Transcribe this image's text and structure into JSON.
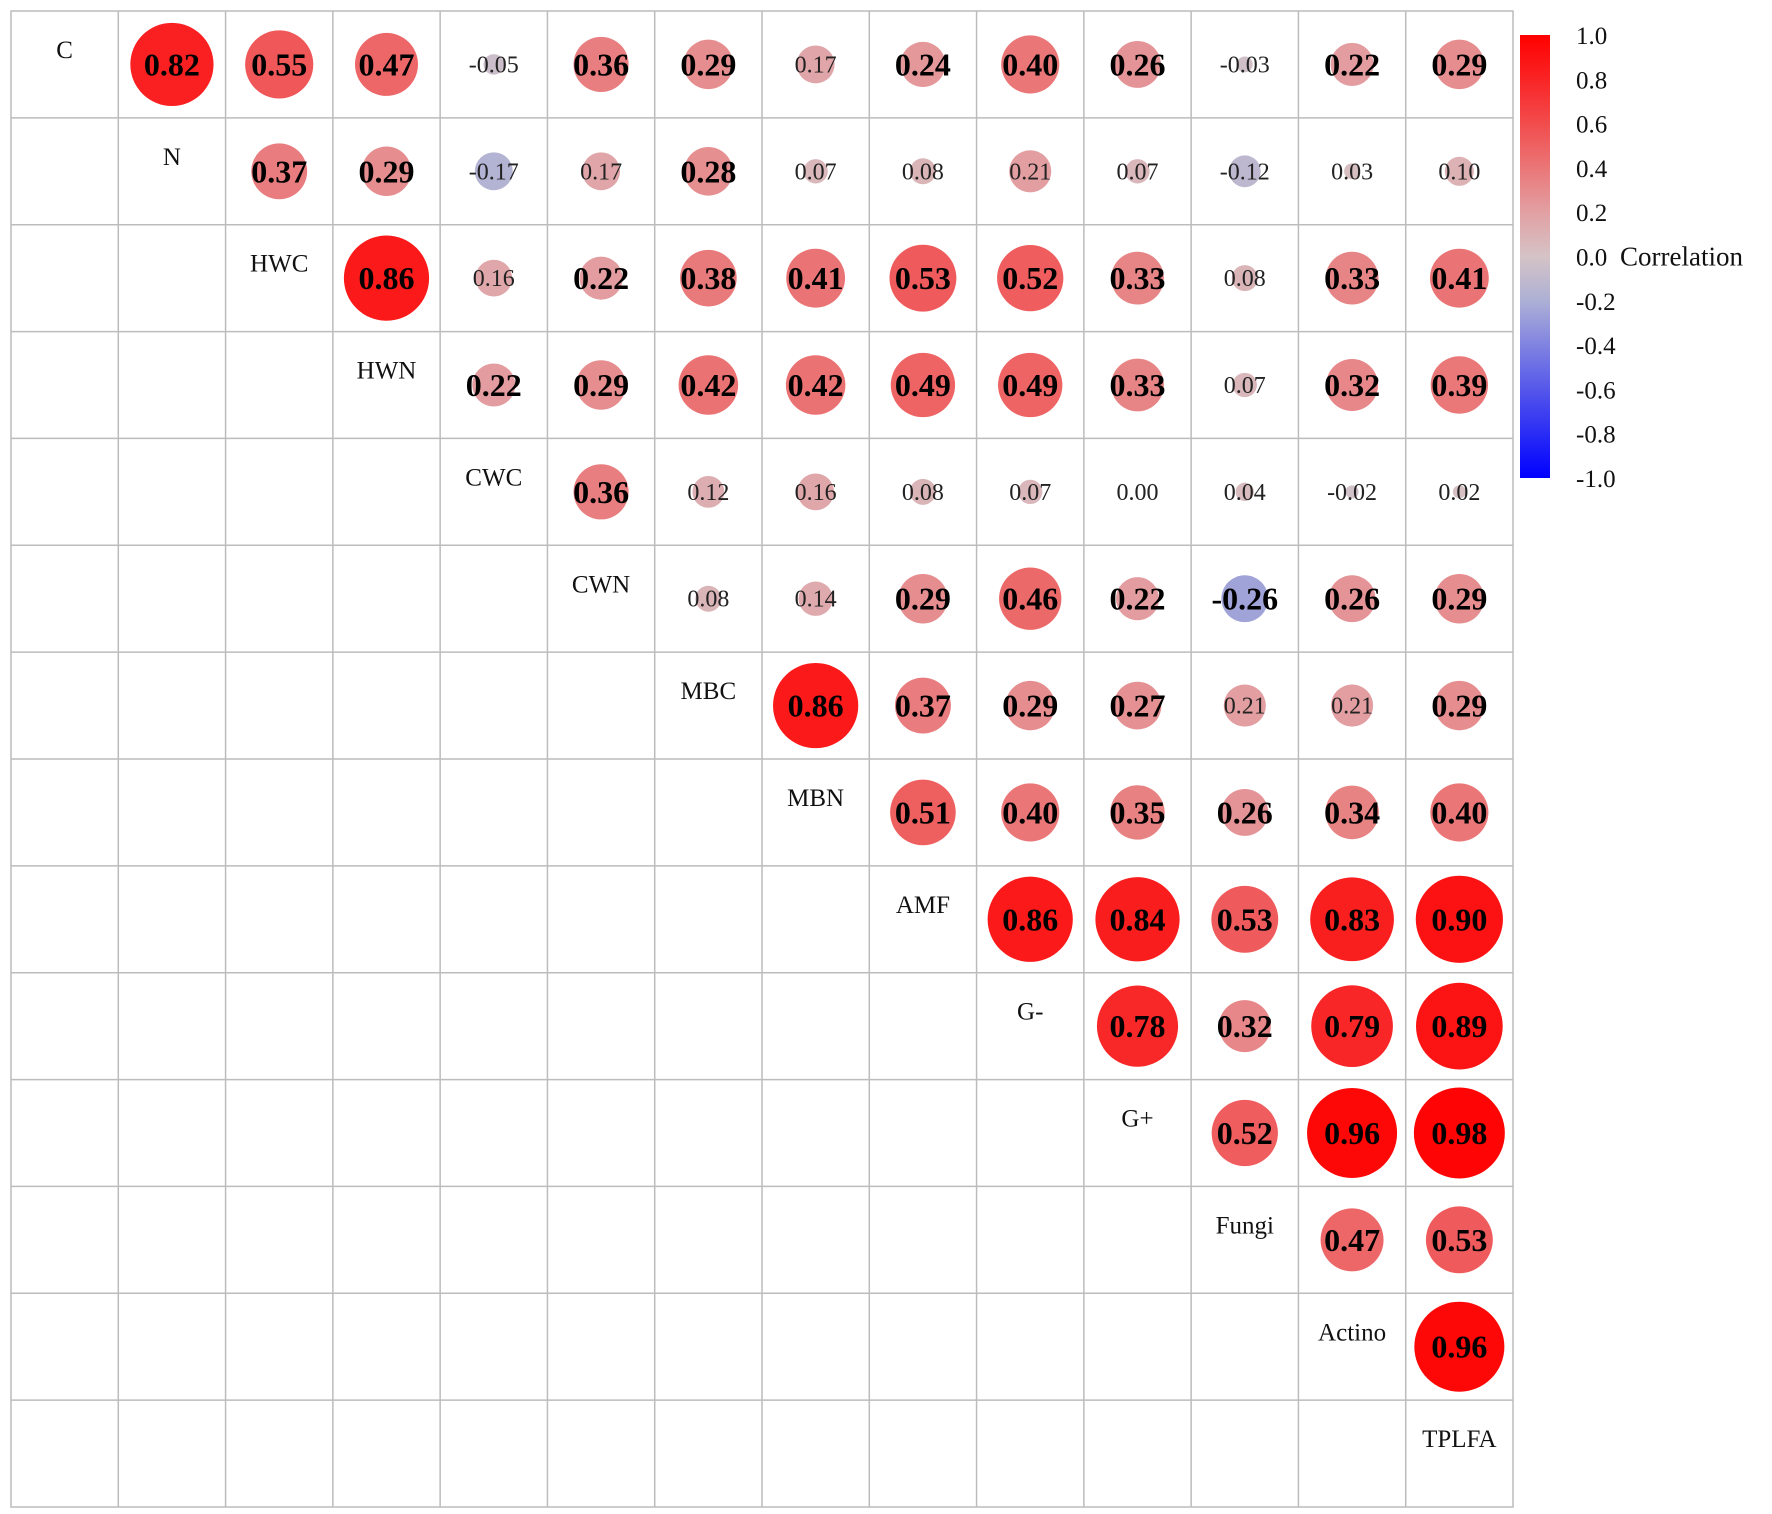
{
  "chart_data": {
    "type": "heatmap",
    "variables": [
      "C",
      "N",
      "HWC",
      "HWN",
      "CWC",
      "CWN",
      "MBC",
      "MBN",
      "AMF",
      "G-",
      "G+",
      "Fungi",
      "Actino",
      "TPLFA"
    ],
    "correlations": [
      [
        null,
        0.82,
        0.55,
        0.47,
        -0.05,
        0.36,
        0.29,
        0.17,
        0.24,
        0.4,
        0.26,
        -0.03,
        0.22,
        0.29
      ],
      [
        null,
        null,
        0.37,
        0.29,
        -0.17,
        0.17,
        0.28,
        0.07,
        0.08,
        0.21,
        0.07,
        -0.12,
        0.03,
        0.1
      ],
      [
        null,
        null,
        null,
        0.86,
        0.16,
        0.22,
        0.38,
        0.41,
        0.53,
        0.52,
        0.33,
        0.08,
        0.33,
        0.41
      ],
      [
        null,
        null,
        null,
        null,
        0.22,
        0.29,
        0.42,
        0.42,
        0.49,
        0.49,
        0.33,
        0.07,
        0.32,
        0.39
      ],
      [
        null,
        null,
        null,
        null,
        null,
        0.36,
        0.12,
        0.16,
        0.08,
        0.07,
        0.0,
        0.04,
        -0.02,
        0.02
      ],
      [
        null,
        null,
        null,
        null,
        null,
        null,
        0.08,
        0.14,
        0.29,
        0.46,
        0.22,
        -0.26,
        0.26,
        0.29
      ],
      [
        null,
        null,
        null,
        null,
        null,
        null,
        null,
        0.86,
        0.37,
        0.29,
        0.27,
        0.21,
        0.21,
        0.29
      ],
      [
        null,
        null,
        null,
        null,
        null,
        null,
        null,
        null,
        0.51,
        0.4,
        0.35,
        0.26,
        0.34,
        0.4
      ],
      [
        null,
        null,
        null,
        null,
        null,
        null,
        null,
        null,
        null,
        0.86,
        0.84,
        0.53,
        0.83,
        0.9
      ],
      [
        null,
        null,
        null,
        null,
        null,
        null,
        null,
        null,
        null,
        null,
        0.78,
        0.32,
        0.79,
        0.89
      ],
      [
        null,
        null,
        null,
        null,
        null,
        null,
        null,
        null,
        null,
        null,
        null,
        0.52,
        0.96,
        0.98
      ],
      [
        null,
        null,
        null,
        null,
        null,
        null,
        null,
        null,
        null,
        null,
        null,
        null,
        0.47,
        0.53
      ],
      [
        null,
        null,
        null,
        null,
        null,
        null,
        null,
        null,
        null,
        null,
        null,
        null,
        null,
        0.96
      ],
      [
        null,
        null,
        null,
        null,
        null,
        null,
        null,
        null,
        null,
        null,
        null,
        null,
        null,
        null
      ]
    ],
    "color_scale": {
      "label": "Correlation",
      "ticks": [
        "1.0",
        "0.8",
        "0.6",
        "0.4",
        "0.2",
        "0.0",
        "-0.2",
        "-0.4",
        "-0.6",
        "-0.8",
        "-1.0"
      ],
      "range": [
        -1,
        1
      ],
      "palette": [
        "#0000ff",
        "#2a2cf5",
        "#5557ea",
        "#8083e0",
        "#adb0d5",
        "#d5c3c6",
        "#e2a0a3",
        "#ea7677",
        "#f24c4d",
        "#f92425",
        "#ff0000"
      ]
    },
    "legend_position": "right",
    "grid": true
  }
}
